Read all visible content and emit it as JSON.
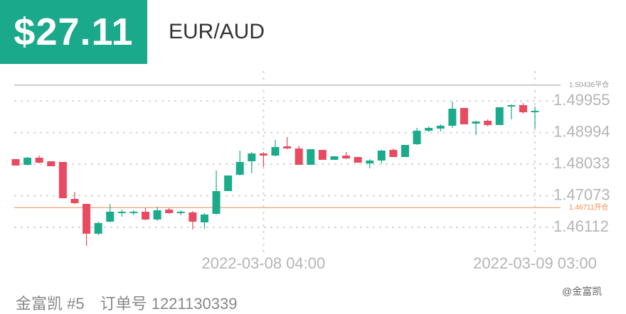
{
  "header": {
    "price": "$27.11",
    "symbol": "EUR/AUD"
  },
  "chart_data": {
    "type": "candlestick",
    "categories": [
      null,
      null,
      null,
      null,
      null,
      null,
      null,
      null,
      null,
      null,
      null,
      null,
      null,
      null,
      null,
      null,
      null,
      null,
      null,
      null,
      null,
      "2022-03-08 04:00",
      null,
      null,
      null,
      null,
      null,
      null,
      null,
      null,
      null,
      null,
      null,
      null,
      null,
      null,
      null,
      null,
      null,
      null,
      null,
      null,
      null,
      null,
      "2022-03-09 03:00"
    ],
    "open": [
      1.48186,
      1.48013,
      1.48229,
      1.48121,
      1.48099,
      1.46976,
      1.46825,
      1.45918,
      1.46285,
      1.46544,
      1.46544,
      1.46587,
      1.4635,
      1.46652,
      1.46544,
      1.46566,
      1.46263,
      1.46522,
      1.47214,
      1.4771,
      1.48121,
      1.48358,
      1.48294,
      1.48574,
      1.4851,
      1.48013,
      1.48466,
      1.48164,
      1.48294,
      1.4825,
      1.48056,
      1.48142,
      1.48466,
      1.4825,
      1.48639,
      1.4905,
      1.49114,
      1.49201,
      1.49741,
      1.49266,
      1.49352,
      1.49222,
      1.49784,
      1.49827,
      1.49611
    ],
    "high": [
      1.48186,
      1.4825,
      1.48294,
      1.48121,
      1.48099,
      1.47192,
      1.46825,
      1.46285,
      1.46825,
      1.46652,
      1.4663,
      1.46695,
      1.46738,
      1.46695,
      1.4663,
      1.46609,
      1.46544,
      1.4784,
      1.47689,
      1.48445,
      1.48402,
      1.48402,
      1.48769,
      1.48855,
      1.48596,
      1.48488,
      1.48466,
      1.48272,
      1.48402,
      1.4825,
      1.48186,
      1.48466,
      1.4851,
      1.48618,
      1.49136,
      1.49179,
      1.49244,
      1.49935,
      1.49741,
      1.49352,
      1.49395,
      1.49762,
      1.49849,
      1.49892,
      1.49784
    ],
    "low": [
      1.47991,
      1.47991,
      1.48056,
      1.4797,
      1.46998,
      1.46825,
      1.4555,
      1.45874,
      1.46263,
      1.46436,
      1.46479,
      1.46328,
      1.46306,
      1.46522,
      1.46479,
      1.46047,
      1.46069,
      1.46501,
      1.47214,
      1.47689,
      1.47754,
      1.47948,
      1.48272,
      1.48488,
      1.48013,
      1.48013,
      1.48164,
      1.48164,
      1.48186,
      1.48078,
      1.47905,
      1.48056,
      1.4825,
      1.4825,
      1.48618,
      1.49006,
      1.49028,
      1.49136,
      1.49244,
      1.4892,
      1.49179,
      1.49222,
      1.49395,
      1.49568,
      1.49114
    ],
    "close": [
      1.47991,
      1.48229,
      1.48078,
      1.4797,
      1.46998,
      1.46846,
      1.45918,
      1.46242,
      1.46587,
      1.46587,
      1.46587,
      1.4635,
      1.4663,
      1.46544,
      1.46587,
      1.46285,
      1.46501,
      1.47214,
      1.47689,
      1.48099,
      1.48358,
      1.48294,
      1.48553,
      1.4851,
      1.48013,
      1.48488,
      1.48164,
      1.48272,
      1.48207,
      1.48078,
      1.48142,
      1.48445,
      1.4825,
      1.48618,
      1.4905,
      1.49136,
      1.49201,
      1.49719,
      1.49244,
      1.4933,
      1.49222,
      1.49762,
      1.49827,
      1.49611,
      1.49654
    ],
    "up_color": "#1aab8a",
    "down_color": "#e84a5f",
    "ylim": [
      1.45464,
      1.50864
    ],
    "yticks": [
      1.46112,
      1.47073,
      1.48033,
      1.48994,
      1.49955
    ],
    "grid": true,
    "reference_lines": [
      {
        "value": 1.50436,
        "label": "1.50436平仓",
        "color": "#9a9a9a"
      },
      {
        "value": 1.46711,
        "label": "1.46711开仓",
        "color": "#f08a4b"
      }
    ]
  },
  "footer": {
    "account": "金富凯 #5",
    "order": "订单号 1221130339",
    "watermark": "@金富凯"
  }
}
